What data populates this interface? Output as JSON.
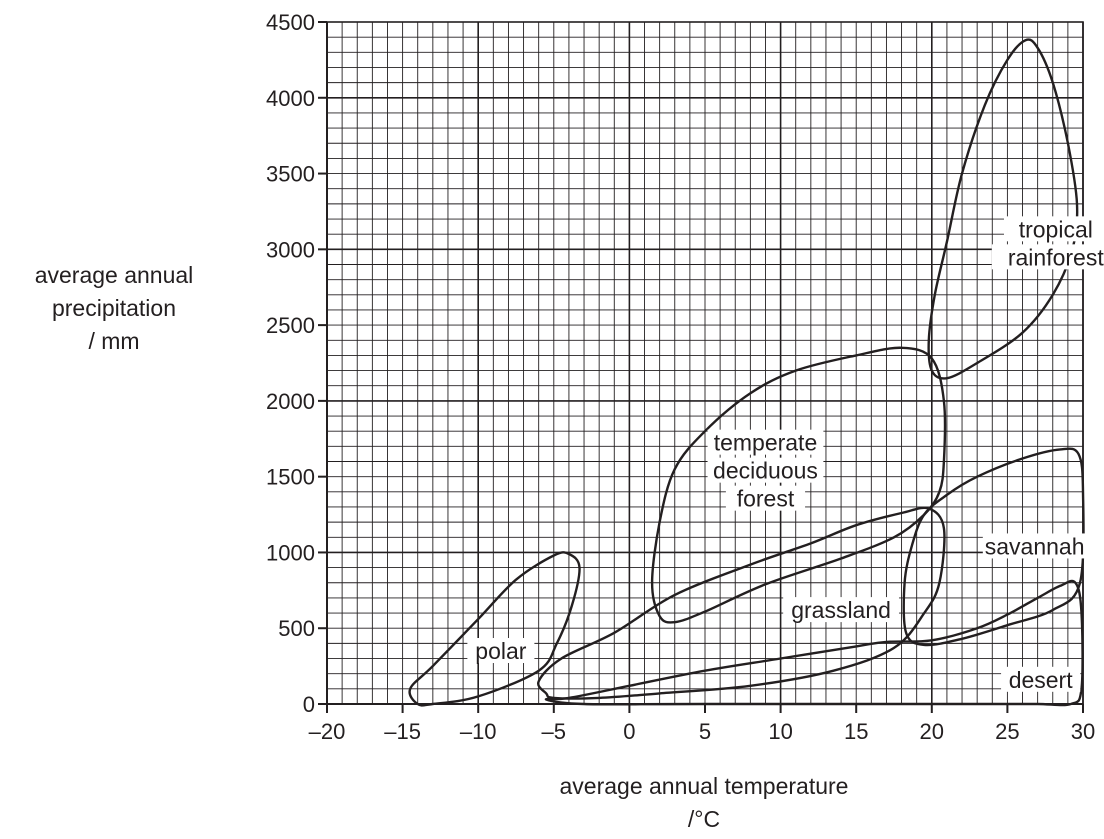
{
  "chart_data": {
    "type": "region-plot",
    "xlabel": [
      "average annual temperature",
      "/°C"
    ],
    "ylabel": [
      "average annual",
      "precipitation",
      "/ mm"
    ],
    "xlim": [
      -20,
      30
    ],
    "ylim": [
      0,
      4500
    ],
    "xticks": [
      -20,
      -15,
      -10,
      -5,
      0,
      5,
      10,
      15,
      20,
      25,
      30
    ],
    "xtick_labels": [
      "–20",
      "–15",
      "–10",
      "–5",
      "0",
      "5",
      "10",
      "15",
      "20",
      "25",
      "30"
    ],
    "yticks": [
      0,
      500,
      1000,
      1500,
      2000,
      2500,
      3000,
      3500,
      4000,
      4500
    ],
    "ytick_labels": [
      "0",
      "500",
      "1000",
      "1500",
      "2000",
      "2500",
      "3000",
      "3500",
      "4000",
      "4500"
    ],
    "grid": {
      "minor_x": 1,
      "minor_y": 100,
      "major_x": 10,
      "major_y": 1000
    },
    "regions": [
      {
        "name": "tropical rainforest",
        "label_lines": [
          "tropical",
          "rainforest"
        ],
        "label_at": [
          28.2,
          3000
        ],
        "boundary": [
          [
            26.2,
            4380
          ],
          [
            25,
            4250
          ],
          [
            23.5,
            3950
          ],
          [
            22,
            3500
          ],
          [
            21,
            3050
          ],
          [
            20.2,
            2700
          ],
          [
            19.8,
            2400
          ],
          [
            20,
            2200
          ],
          [
            21,
            2150
          ],
          [
            23,
            2250
          ],
          [
            26,
            2450
          ],
          [
            28,
            2700
          ],
          [
            29.3,
            3000
          ],
          [
            29.6,
            3300
          ],
          [
            29,
            3700
          ],
          [
            28,
            4100
          ],
          [
            27,
            4330
          ],
          [
            26.2,
            4380
          ]
        ]
      },
      {
        "name": "temperate deciduous forest",
        "label_lines": [
          "temperate",
          "deciduous",
          "forest"
        ],
        "label_at": [
          9,
          1500
        ],
        "boundary": [
          [
            3,
            540
          ],
          [
            2,
            580
          ],
          [
            1.5,
            800
          ],
          [
            2,
            1200
          ],
          [
            3,
            1550
          ],
          [
            5,
            1800
          ],
          [
            8,
            2050
          ],
          [
            11,
            2200
          ],
          [
            15,
            2300
          ],
          [
            18,
            2350
          ],
          [
            20,
            2280
          ],
          [
            20.8,
            2000
          ],
          [
            20.8,
            1600
          ],
          [
            20.5,
            1400
          ],
          [
            19.5,
            1250
          ],
          [
            17.5,
            1100
          ],
          [
            14,
            960
          ],
          [
            9,
            790
          ],
          [
            5,
            610
          ],
          [
            3,
            540
          ]
        ]
      },
      {
        "name": "polar",
        "label_lines": [
          "polar"
        ],
        "label_at": [
          -8.5,
          310
        ],
        "boundary": [
          [
            -14,
            0
          ],
          [
            -14.5,
            100
          ],
          [
            -13,
            250
          ],
          [
            -10,
            560
          ],
          [
            -7.5,
            820
          ],
          [
            -5,
            980
          ],
          [
            -4,
            990
          ],
          [
            -3.3,
            900
          ],
          [
            -3.8,
            650
          ],
          [
            -4.8,
            400
          ],
          [
            -6,
            220
          ],
          [
            -10,
            50
          ],
          [
            -13,
            0
          ],
          [
            -14,
            0
          ]
        ]
      },
      {
        "name": "grassland",
        "label_lines": [
          "grassland"
        ],
        "label_at": [
          14,
          580
        ],
        "boundary": [
          [
            -5.5,
            70
          ],
          [
            -6,
            150
          ],
          [
            -4.5,
            300
          ],
          [
            -1,
            470
          ],
          [
            3,
            720
          ],
          [
            8,
            920
          ],
          [
            12,
            1060
          ],
          [
            15,
            1180
          ],
          [
            18,
            1260
          ],
          [
            19.8,
            1290
          ],
          [
            20.8,
            1160
          ],
          [
            20.5,
            800
          ],
          [
            19.5,
            600
          ],
          [
            17.5,
            370
          ],
          [
            13.5,
            220
          ],
          [
            8,
            120
          ],
          [
            2,
            70
          ],
          [
            -2,
            40
          ],
          [
            -5,
            40
          ],
          [
            -5.5,
            70
          ]
        ]
      },
      {
        "name": "savannah",
        "label_lines": [
          "savannah"
        ],
        "label_at": [
          26.8,
          1000
        ],
        "boundary": [
          [
            19.5,
            1250
          ],
          [
            21,
            1380
          ],
          [
            23,
            1500
          ],
          [
            26,
            1620
          ],
          [
            28.5,
            1680
          ],
          [
            29.7,
            1650
          ],
          [
            30,
            1400
          ],
          [
            29.8,
            800
          ],
          [
            28,
            620
          ],
          [
            25,
            520
          ],
          [
            22,
            430
          ],
          [
            19.5,
            390
          ],
          [
            18.3,
            470
          ],
          [
            18.2,
            800
          ],
          [
            18.7,
            1050
          ],
          [
            19.5,
            1250
          ]
        ]
      },
      {
        "name": "desert",
        "label_lines": [
          "desert"
        ],
        "label_at": [
          27.2,
          120
        ],
        "boundary": [
          [
            -5.5,
            30
          ],
          [
            -4,
            40
          ],
          [
            0,
            120
          ],
          [
            5,
            220
          ],
          [
            10,
            300
          ],
          [
            15,
            380
          ],
          [
            17,
            410
          ],
          [
            20,
            420
          ],
          [
            23,
            500
          ],
          [
            25,
            590
          ],
          [
            27,
            700
          ],
          [
            28.5,
            780
          ],
          [
            29.5,
            800
          ],
          [
            29.9,
            600
          ],
          [
            29.9,
            100
          ],
          [
            29.2,
            0
          ],
          [
            27,
            0
          ],
          [
            24,
            0
          ],
          [
            5,
            0
          ],
          [
            -3,
            0
          ],
          [
            -5.5,
            30
          ]
        ]
      }
    ]
  }
}
